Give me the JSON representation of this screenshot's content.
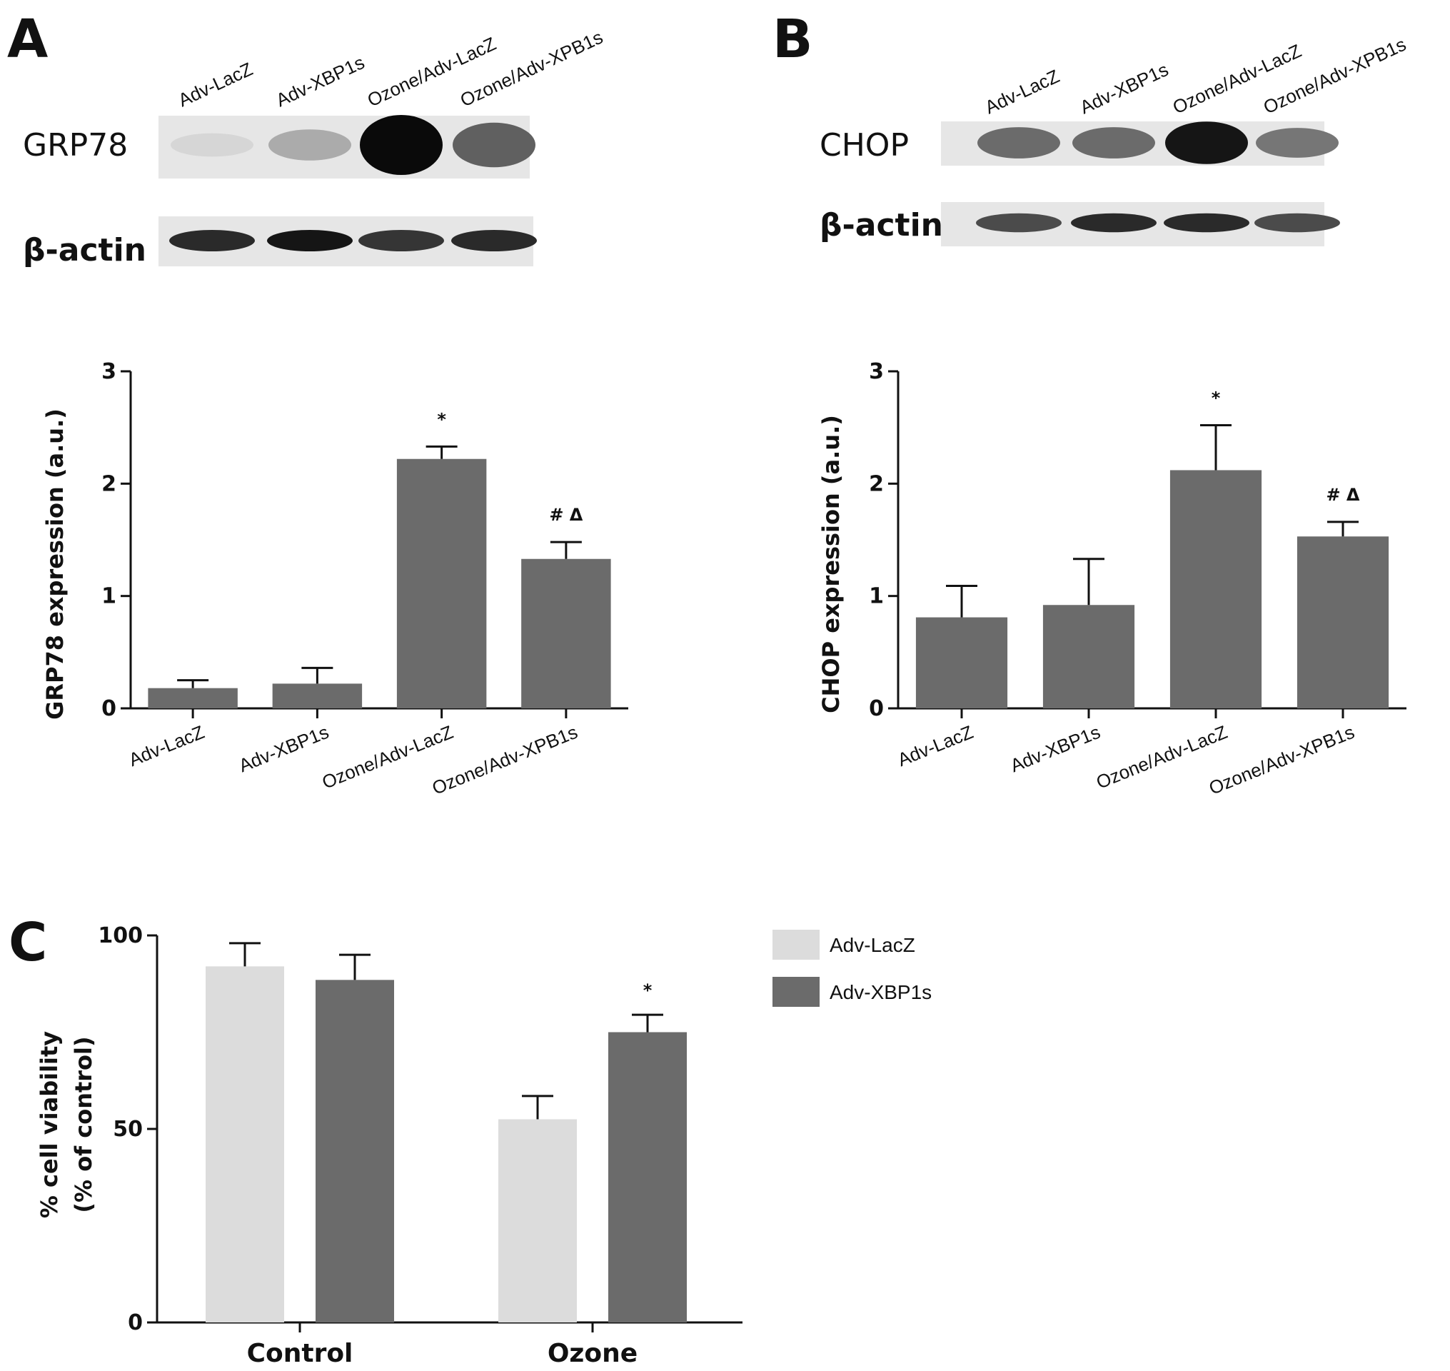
{
  "panel_letters": {
    "a": "A",
    "b": "B",
    "c": "C"
  },
  "blot_a": {
    "lanes": [
      "Adv-LacZ",
      "Adv-XBP1s",
      "Ozone/Adv-LacZ",
      "Ozone/Adv-XPB1s"
    ],
    "protein_label": "GRP78",
    "loading_label": "β-actin",
    "protein_band_intensity": [
      0.05,
      0.25,
      1.0,
      0.6
    ],
    "loading_band_intensity": [
      0.85,
      0.95,
      0.8,
      0.85
    ]
  },
  "blot_b": {
    "lanes": [
      "Adv-LacZ",
      "Adv-XBP1s",
      "Ozone/Adv-LacZ",
      "Ozone/Adv-XPB1s"
    ],
    "protein_label": "CHOP",
    "loading_label": "β-actin",
    "protein_band_intensity": [
      0.55,
      0.55,
      0.95,
      0.5
    ],
    "loading_band_intensity": [
      0.7,
      0.85,
      0.85,
      0.7
    ]
  },
  "colors": {
    "dark_bar": "#6b6b6b",
    "light_bar": "#dcdcdc",
    "axis": "#111111"
  },
  "chart_data": [
    {
      "type": "bar",
      "panel": "A",
      "categories": [
        "Adv-LacZ",
        "Adv-XBP1s",
        "Ozone/Adv-LacZ",
        "Ozone/Adv-XPB1s"
      ],
      "values": [
        0.18,
        0.22,
        2.22,
        1.33
      ],
      "errors": [
        0.07,
        0.14,
        0.11,
        0.15
      ],
      "annotations": [
        "",
        "",
        "*",
        "# Δ"
      ],
      "ylabel": "GRP78 expression (a.u.)",
      "xlabel": "",
      "ylim": [
        0,
        3
      ],
      "yticks": [
        0,
        1,
        2,
        3
      ],
      "grid": false
    },
    {
      "type": "bar",
      "panel": "B",
      "categories": [
        "Adv-LacZ",
        "Adv-XBP1s",
        "Ozone/Adv-LacZ",
        "Ozone/Adv-XPB1s"
      ],
      "values": [
        0.81,
        0.92,
        2.12,
        1.53
      ],
      "errors": [
        0.28,
        0.41,
        0.4,
        0.13
      ],
      "annotations": [
        "",
        "",
        "*",
        "# Δ"
      ],
      "ylabel": "CHOP expression (a.u.)",
      "xlabel": "",
      "ylim": [
        0,
        3
      ],
      "yticks": [
        0,
        1,
        2,
        3
      ],
      "grid": false
    },
    {
      "type": "bar",
      "panel": "C",
      "categories": [
        "Control",
        "Ozone"
      ],
      "series": [
        {
          "name": "Adv-LacZ",
          "values": [
            92,
            52.5
          ],
          "errors": [
            6,
            6
          ],
          "color": "#dcdcdc"
        },
        {
          "name": "Adv-XBP1s",
          "values": [
            88.5,
            75
          ],
          "errors": [
            6.5,
            4.5
          ],
          "color": "#6b6b6b"
        }
      ],
      "annotations": {
        "Ozone": {
          "series": "Adv-XBP1s",
          "text": "*"
        }
      },
      "ylabel": "% cell viability",
      "ylabel2": "(% of control)",
      "xlabel": "",
      "ylim": [
        0,
        100
      ],
      "yticks": [
        0,
        50,
        100
      ],
      "legend_position": "right",
      "grid": false
    }
  ]
}
